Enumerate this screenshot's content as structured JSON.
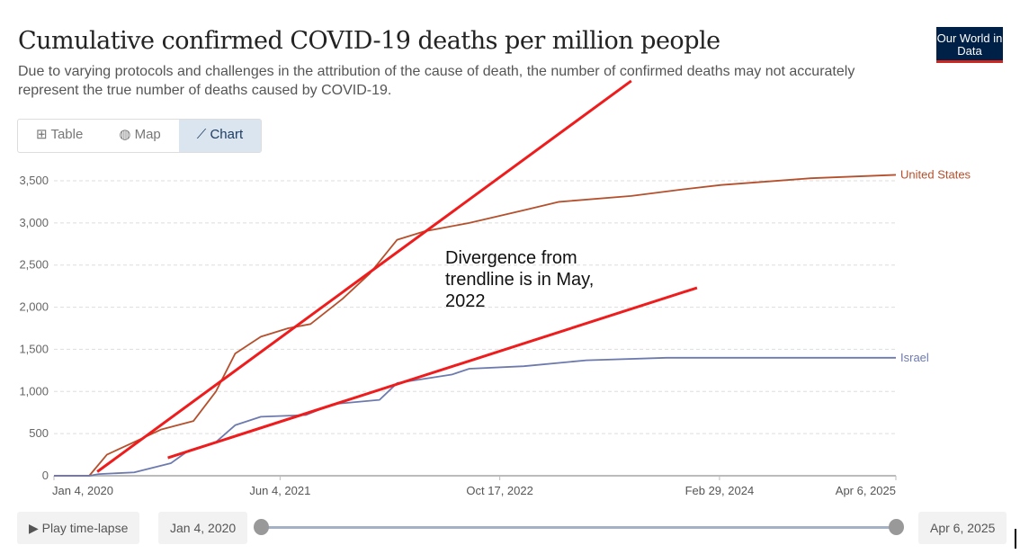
{
  "header": {
    "title": "Cumulative confirmed COVID-19 deaths per million people",
    "subtitle": "Due to varying protocols and challenges in the attribution of the cause of death, the number of confirmed deaths may not accurately represent the true number of deaths caused by COVID-19.",
    "logo": "Our World in Data"
  },
  "tabs": [
    {
      "label": "Table",
      "icon": "table-icon"
    },
    {
      "label": "Map",
      "icon": "globe-icon"
    },
    {
      "label": "Chart",
      "icon": "line-chart-icon"
    }
  ],
  "controls": {
    "play": "Play time-lapse",
    "start": "Jan 4, 2020",
    "end": "Apr 6, 2025",
    "range": [
      0,
      1
    ]
  },
  "annotation": "Divergence from trendline is in May, 2022",
  "chart_data": {
    "type": "line",
    "title": "Cumulative confirmed COVID-19 deaths per million people",
    "ylim": [
      0,
      3500
    ],
    "xlim": [
      2020.01,
      2025.26
    ],
    "yticks": [
      0,
      500,
      1000,
      1500,
      2000,
      2500,
      3000,
      3500
    ],
    "ytick_labels": [
      "0",
      "500",
      "1,000",
      "1,500",
      "2,000",
      "2,500",
      "3,000",
      "3,500"
    ],
    "xticks": [
      2020.01,
      2021.42,
      2022.79,
      2024.16,
      2025.26
    ],
    "xtick_labels": [
      "Jan 4, 2020",
      "Jun 4, 2021",
      "Oct 17, 2022",
      "Feb 29, 2024",
      "Apr 6, 2025"
    ],
    "series": [
      {
        "name": "United States",
        "color": "#b5502d",
        "x": [
          2020.01,
          2020.23,
          2020.34,
          2020.51,
          2020.68,
          2020.88,
          2021.02,
          2021.14,
          2021.3,
          2021.47,
          2021.61,
          2021.81,
          2021.98,
          2022.15,
          2022.32,
          2022.6,
          2022.94,
          2023.16,
          2023.61,
          2023.94,
          2024.17,
          2024.73,
          2025.26
        ],
        "values": [
          0,
          0,
          250,
          400,
          550,
          650,
          1000,
          1450,
          1650,
          1750,
          1800,
          2100,
          2400,
          2800,
          2900,
          3000,
          3150,
          3250,
          3320,
          3400,
          3450,
          3530,
          3570
        ]
      },
      {
        "name": "Israel",
        "color": "#6d7aae",
        "x": [
          2020.01,
          2020.23,
          2020.29,
          2020.51,
          2020.74,
          2020.85,
          2021.02,
          2021.14,
          2021.3,
          2021.58,
          2021.75,
          2022.04,
          2022.15,
          2022.49,
          2022.6,
          2022.94,
          2023.33,
          2023.83,
          2025.26
        ],
        "values": [
          0,
          0,
          20,
          40,
          150,
          300,
          400,
          600,
          700,
          720,
          850,
          900,
          1100,
          1200,
          1270,
          1300,
          1370,
          1400,
          1400
        ]
      }
    ],
    "trendlines": [
      {
        "color": "#ee1c1c",
        "x": [
          2020.28,
          2023.61
        ],
        "values": [
          48,
          4685
        ]
      },
      {
        "color": "#ee1c1c",
        "x": [
          2020.72,
          2024.02
        ],
        "values": [
          213,
          2230
        ]
      }
    ]
  }
}
